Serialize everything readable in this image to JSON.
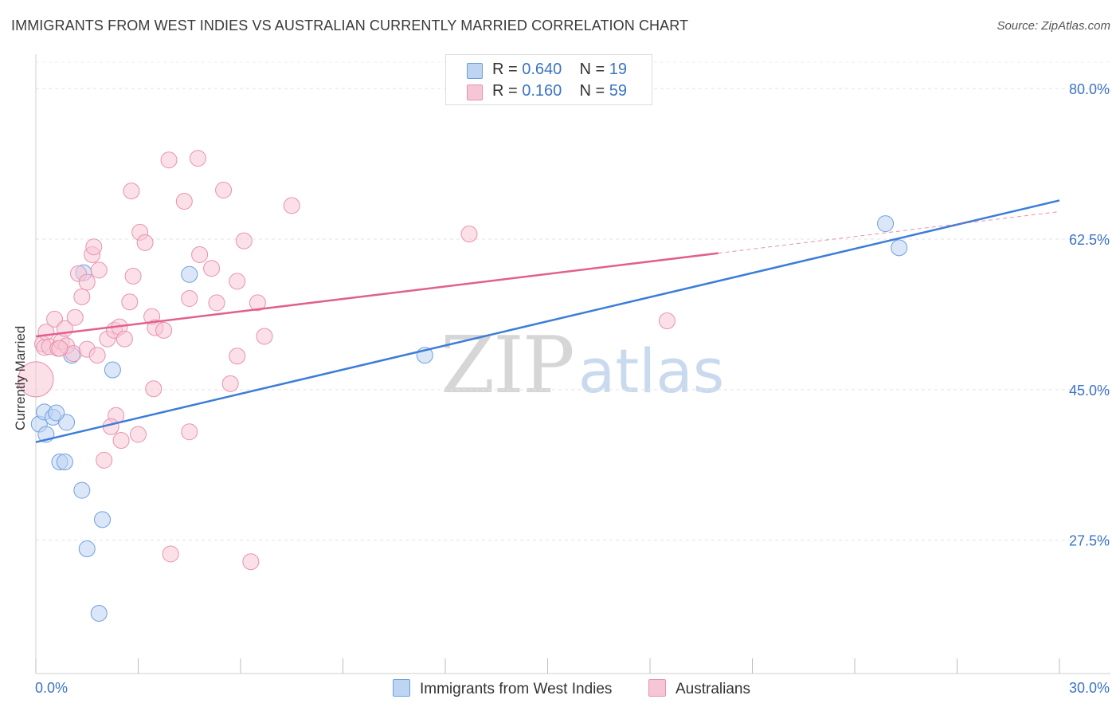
{
  "header": {
    "title": "IMMIGRANTS FROM WEST INDIES VS AUSTRALIAN CURRENTLY MARRIED CORRELATION CHART",
    "source": "Source: ZipAtlas.com"
  },
  "legend_box": {
    "rows": [
      {
        "r_label": "R = ",
        "r_value": "0.640",
        "n_label": "N = ",
        "n_value": "19"
      },
      {
        "r_label": "R = ",
        "r_value": "0.160",
        "n_label": "N = ",
        "n_value": "59"
      }
    ]
  },
  "bottom_legend": {
    "items": [
      {
        "label": "Immigrants from West Indies"
      },
      {
        "label": "Australians"
      }
    ]
  },
  "watermark": {
    "zip": "ZIP",
    "atlas": "atlas"
  },
  "colors": {
    "blue": "#3b7dd8",
    "blue_fill": "#bdd4f3",
    "pink": "#e0608e",
    "pink_fill": "#f7c6d6",
    "axis_label": "#3b73c4"
  },
  "chart_data": {
    "type": "scatter",
    "title": "IMMIGRANTS FROM WEST INDIES VS AUSTRALIAN CURRENTLY MARRIED CORRELATION CHART",
    "xlabel": "",
    "ylabel": "Currently Married",
    "xlim": [
      0.0,
      30.0
    ],
    "ylim": [
      12.0,
      84.0
    ],
    "x_tick_labels": [
      {
        "value": 0.0,
        "label": "0.0%"
      },
      {
        "value": 30.0,
        "label": "30.0%"
      }
    ],
    "y_tick_labels": [
      {
        "value": 80.0,
        "label": "80.0%"
      },
      {
        "value": 62.5,
        "label": "62.5%"
      },
      {
        "value": 45.0,
        "label": "45.0%"
      },
      {
        "value": 27.5,
        "label": "27.5%"
      }
    ],
    "x_minor_ticks": [
      0,
      3,
      6,
      9,
      12,
      15,
      18,
      21,
      24,
      27,
      30
    ],
    "grid": true,
    "series": [
      {
        "name": "Immigrants from West Indies",
        "color": "blue",
        "R": 0.64,
        "N": 19,
        "points": [
          {
            "x": 0.1,
            "y": 41.0,
            "s": 10
          },
          {
            "x": 0.25,
            "y": 42.4,
            "s": 10
          },
          {
            "x": 0.5,
            "y": 41.8,
            "s": 10
          },
          {
            "x": 0.3,
            "y": 39.8,
            "s": 10
          },
          {
            "x": 0.9,
            "y": 41.2,
            "s": 10
          },
          {
            "x": 0.7,
            "y": 36.6,
            "s": 10
          },
          {
            "x": 0.85,
            "y": 36.6,
            "s": 10
          },
          {
            "x": 1.35,
            "y": 33.3,
            "s": 10
          },
          {
            "x": 1.95,
            "y": 29.9,
            "s": 10
          },
          {
            "x": 1.5,
            "y": 26.5,
            "s": 10
          },
          {
            "x": 1.85,
            "y": 19.0,
            "s": 10
          },
          {
            "x": 1.05,
            "y": 49.0,
            "s": 10
          },
          {
            "x": 1.4,
            "y": 58.6,
            "s": 10
          },
          {
            "x": 2.25,
            "y": 47.3,
            "s": 10
          },
          {
            "x": 4.5,
            "y": 58.4,
            "s": 10
          },
          {
            "x": 11.4,
            "y": 49.0,
            "s": 10
          },
          {
            "x": 24.9,
            "y": 64.3,
            "s": 10
          },
          {
            "x": 25.3,
            "y": 61.5,
            "s": 10
          },
          {
            "x": 0.6,
            "y": 42.3,
            "s": 10
          }
        ],
        "trend": {
          "x0": 0.0,
          "y0": 38.9,
          "x1": 30.0,
          "y1": 67.0,
          "dashed_from": null
        }
      },
      {
        "name": "Australians",
        "color": "pink",
        "R": 0.16,
        "N": 59,
        "points": [
          {
            "x": 0.0,
            "y": 46.2,
            "s": 22
          },
          {
            "x": 0.2,
            "y": 50.3,
            "s": 10
          },
          {
            "x": 0.3,
            "y": 51.7,
            "s": 10
          },
          {
            "x": 0.25,
            "y": 49.9,
            "s": 10
          },
          {
            "x": 0.4,
            "y": 50.0,
            "s": 10
          },
          {
            "x": 0.55,
            "y": 53.2,
            "s": 10
          },
          {
            "x": 0.65,
            "y": 49.8,
            "s": 10
          },
          {
            "x": 0.75,
            "y": 50.6,
            "s": 10
          },
          {
            "x": 0.9,
            "y": 50.1,
            "s": 10
          },
          {
            "x": 0.85,
            "y": 52.1,
            "s": 10
          },
          {
            "x": 1.1,
            "y": 49.2,
            "s": 10
          },
          {
            "x": 1.15,
            "y": 53.4,
            "s": 10
          },
          {
            "x": 1.25,
            "y": 58.5,
            "s": 10
          },
          {
            "x": 1.35,
            "y": 55.8,
            "s": 10
          },
          {
            "x": 1.5,
            "y": 57.5,
            "s": 10
          },
          {
            "x": 1.65,
            "y": 60.7,
            "s": 10
          },
          {
            "x": 1.7,
            "y": 61.6,
            "s": 10
          },
          {
            "x": 1.85,
            "y": 58.9,
            "s": 10
          },
          {
            "x": 1.5,
            "y": 49.7,
            "s": 10
          },
          {
            "x": 1.8,
            "y": 49.0,
            "s": 10
          },
          {
            "x": 2.1,
            "y": 50.9,
            "s": 10
          },
          {
            "x": 2.3,
            "y": 51.9,
            "s": 10
          },
          {
            "x": 2.45,
            "y": 52.3,
            "s": 10
          },
          {
            "x": 2.6,
            "y": 50.9,
            "s": 10
          },
          {
            "x": 2.75,
            "y": 55.2,
            "s": 10
          },
          {
            "x": 2.85,
            "y": 58.2,
            "s": 10
          },
          {
            "x": 3.05,
            "y": 63.3,
            "s": 10
          },
          {
            "x": 2.8,
            "y": 68.1,
            "s": 10
          },
          {
            "x": 3.2,
            "y": 62.1,
            "s": 10
          },
          {
            "x": 3.4,
            "y": 53.5,
            "s": 10
          },
          {
            "x": 3.5,
            "y": 52.2,
            "s": 10
          },
          {
            "x": 3.75,
            "y": 51.9,
            "s": 10
          },
          {
            "x": 3.45,
            "y": 45.1,
            "s": 10
          },
          {
            "x": 3.9,
            "y": 71.7,
            "s": 10
          },
          {
            "x": 4.35,
            "y": 66.9,
            "s": 10
          },
          {
            "x": 4.5,
            "y": 55.6,
            "s": 10
          },
          {
            "x": 4.75,
            "y": 71.9,
            "s": 10
          },
          {
            "x": 4.8,
            "y": 60.7,
            "s": 10
          },
          {
            "x": 5.15,
            "y": 59.1,
            "s": 10
          },
          {
            "x": 5.3,
            "y": 55.1,
            "s": 10
          },
          {
            "x": 5.5,
            "y": 68.2,
            "s": 10
          },
          {
            "x": 5.9,
            "y": 57.6,
            "s": 10
          },
          {
            "x": 5.9,
            "y": 48.9,
            "s": 10
          },
          {
            "x": 6.1,
            "y": 62.3,
            "s": 10
          },
          {
            "x": 6.5,
            "y": 55.1,
            "s": 10
          },
          {
            "x": 6.7,
            "y": 51.2,
            "s": 10
          },
          {
            "x": 7.5,
            "y": 66.4,
            "s": 10
          },
          {
            "x": 5.7,
            "y": 45.7,
            "s": 10
          },
          {
            "x": 2.35,
            "y": 42.0,
            "s": 10
          },
          {
            "x": 2.2,
            "y": 40.7,
            "s": 10
          },
          {
            "x": 2.5,
            "y": 39.1,
            "s": 10
          },
          {
            "x": 2.0,
            "y": 36.8,
            "s": 10
          },
          {
            "x": 3.0,
            "y": 39.8,
            "s": 10
          },
          {
            "x": 4.5,
            "y": 40.1,
            "s": 10
          },
          {
            "x": 3.95,
            "y": 25.9,
            "s": 10
          },
          {
            "x": 6.3,
            "y": 25.0,
            "s": 10
          },
          {
            "x": 12.7,
            "y": 63.1,
            "s": 10
          },
          {
            "x": 18.5,
            "y": 53.0,
            "s": 10
          },
          {
            "x": 0.7,
            "y": 49.8,
            "s": 10
          }
        ],
        "trend": {
          "x0": 0.0,
          "y0": 51.2,
          "x1": 30.0,
          "y1": 65.7,
          "dashed_from": 20.0
        }
      }
    ]
  }
}
